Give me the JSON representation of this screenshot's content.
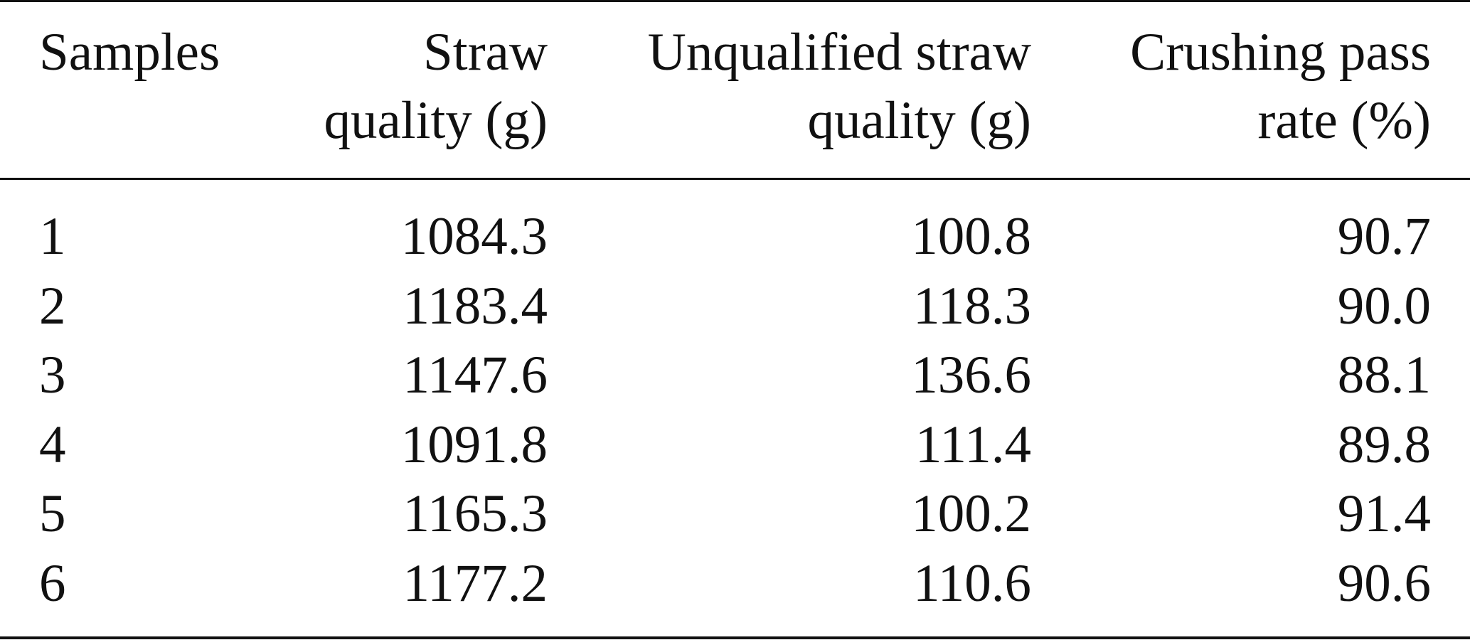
{
  "table": {
    "headers": [
      {
        "lines": [
          "Samples"
        ]
      },
      {
        "lines": [
          "Straw",
          "quality (g)"
        ]
      },
      {
        "lines": [
          "Unqualified straw",
          "quality (g)"
        ]
      },
      {
        "lines": [
          "Crushing pass",
          "rate (%)"
        ]
      }
    ],
    "rows": [
      [
        "1",
        "1084.3",
        "100.8",
        "90.7"
      ],
      [
        "2",
        "1183.4",
        "118.3",
        "90.0"
      ],
      [
        "3",
        "1147.6",
        "136.6",
        "88.1"
      ],
      [
        "4",
        "1091.8",
        "111.4",
        "89.8"
      ],
      [
        "5",
        "1165.3",
        "100.2",
        "91.4"
      ],
      [
        "6",
        "1177.2",
        "110.6",
        "90.6"
      ]
    ]
  }
}
